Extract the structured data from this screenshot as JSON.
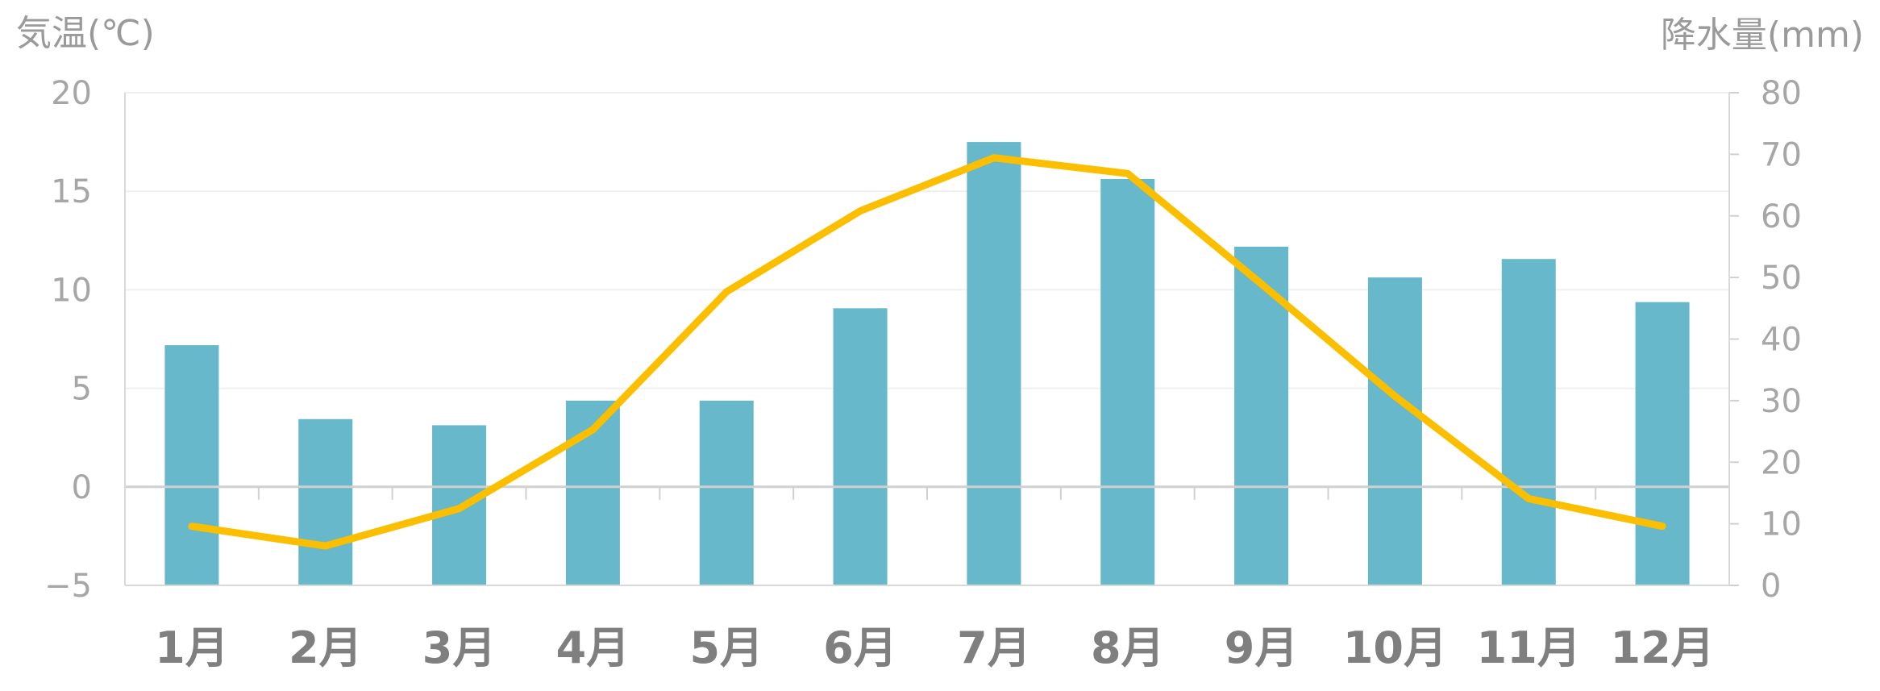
{
  "chart_data": {
    "type": "bar+line",
    "categories": [
      "1月",
      "2月",
      "3月",
      "4月",
      "5月",
      "6月",
      "7月",
      "8月",
      "9月",
      "10月",
      "11月",
      "12月"
    ],
    "y_left": {
      "label": "気温(℃)",
      "range": [
        -5,
        20
      ],
      "ticks": [
        20,
        15,
        10,
        5,
        0,
        -5
      ],
      "tick_labels": [
        "20",
        "15",
        "10",
        "5",
        "0",
        "−5"
      ]
    },
    "y_right": {
      "label": "降水量(mm)",
      "range": [
        0,
        80
      ],
      "ticks": [
        80,
        70,
        60,
        50,
        40,
        30,
        20,
        10,
        0
      ],
      "tick_labels": [
        "80",
        "70",
        "60",
        "50",
        "40",
        "30",
        "20",
        "10",
        "0"
      ]
    },
    "series": [
      {
        "type": "bar",
        "axis": "right",
        "color": "#66b8ca",
        "values": [
          39,
          27,
          26,
          30,
          30,
          45,
          72,
          66,
          55,
          50,
          53,
          46
        ]
      },
      {
        "type": "line",
        "axis": "left",
        "color": "#fbbf00",
        "values": [
          -2.0,
          -3.0,
          -1.1,
          2.9,
          9.9,
          14.0,
          16.7,
          15.9,
          10.3,
          4.6,
          -0.6,
          -2.0
        ]
      }
    ],
    "grid": true
  }
}
